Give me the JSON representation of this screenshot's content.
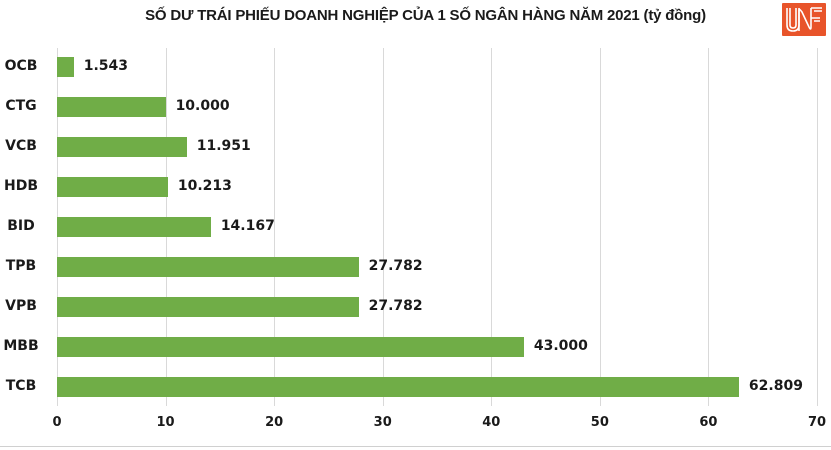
{
  "title": "SỐ DƯ TRÁI PHIẾU DOANH NGHIỆP CỦA 1 SỐ NGÂN HÀNG NĂM 2021 (tỷ đồng)",
  "logo": {
    "text": "UNF",
    "color": "#e8542a"
  },
  "colors": {
    "bar": "#70ad47",
    "grid": "#d9d9d9",
    "text": "#1a1a1a"
  },
  "chart_data": {
    "type": "bar",
    "orientation": "horizontal",
    "title": "SỐ DƯ TRÁI PHIẾU DOANH NGHIỆP CỦA 1 SỐ NGÂN HÀNG NĂM 2021 (tỷ đồng)",
    "categories": [
      "OCB",
      "CTG",
      "VCB",
      "HDB",
      "BID",
      "TPB",
      "VPB",
      "MBB",
      "TCB"
    ],
    "values": [
      1.543,
      10.0,
      11.951,
      10.213,
      14.167,
      27.782,
      27.782,
      43.0,
      62.809
    ],
    "labels": [
      "1.543",
      "10.000",
      "11.951",
      "10.213",
      "14.167",
      "27.782",
      "27.782",
      "43.000",
      "62.809"
    ],
    "xlabel": "",
    "ylabel": "",
    "xlim": [
      0,
      70
    ],
    "xticks": [
      "0",
      "10",
      "20",
      "30",
      "40",
      "50",
      "60",
      "70"
    ],
    "grid": true,
    "legend": false,
    "unit": "tỷ đồng"
  }
}
